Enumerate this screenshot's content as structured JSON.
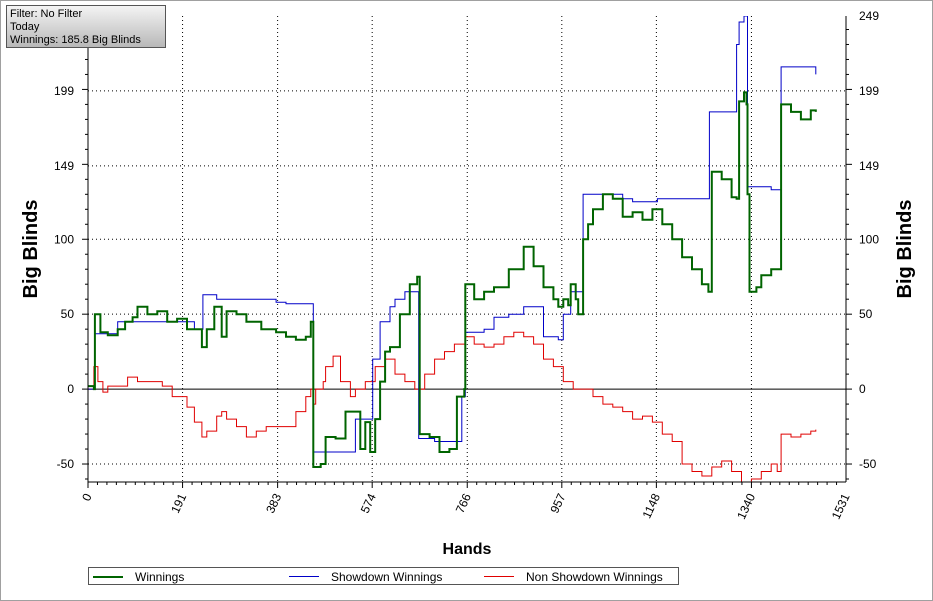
{
  "info_box": {
    "filter": "Filter: No Filter",
    "period": "Today",
    "winnings": "Winnings: 185.8 Big Blinds"
  },
  "chart_data": {
    "type": "line",
    "xlabel": "Hands",
    "ylabel": "Big Blinds",
    "xlim": [
      0,
      1531
    ],
    "ylim": [
      -62,
      249
    ],
    "x_ticks": [
      "0",
      "191",
      "383",
      "574",
      "766",
      "957",
      "1148",
      "1340",
      "1531"
    ],
    "y_ticks_left": [
      "199",
      "149",
      "100",
      "50",
      "0",
      "-50"
    ],
    "y_ticks_right": [
      "249",
      "199",
      "149",
      "100",
      "50",
      "0",
      "-50"
    ],
    "grid": true,
    "legend_position": "bottom",
    "series": [
      {
        "name": "Winnings",
        "color": "#006400",
        "points": [
          [
            0,
            2
          ],
          [
            12,
            0
          ],
          [
            14,
            50
          ],
          [
            25,
            38
          ],
          [
            40,
            36
          ],
          [
            60,
            40
          ],
          [
            75,
            45
          ],
          [
            90,
            48
          ],
          [
            100,
            55
          ],
          [
            120,
            50
          ],
          [
            140,
            52
          ],
          [
            160,
            45
          ],
          [
            180,
            47
          ],
          [
            200,
            40
          ],
          [
            230,
            28
          ],
          [
            240,
            40
          ],
          [
            255,
            55
          ],
          [
            270,
            35
          ],
          [
            280,
            52
          ],
          [
            300,
            50
          ],
          [
            320,
            45
          ],
          [
            350,
            40
          ],
          [
            380,
            38
          ],
          [
            400,
            35
          ],
          [
            420,
            33
          ],
          [
            440,
            35
          ],
          [
            450,
            45
          ],
          [
            455,
            -52
          ],
          [
            470,
            -50
          ],
          [
            480,
            -32
          ],
          [
            500,
            -33
          ],
          [
            520,
            -15
          ],
          [
            550,
            -40
          ],
          [
            560,
            -22
          ],
          [
            570,
            -42
          ],
          [
            580,
            -20
          ],
          [
            590,
            5
          ],
          [
            600,
            25
          ],
          [
            610,
            28
          ],
          [
            630,
            50
          ],
          [
            650,
            70
          ],
          [
            665,
            75
          ],
          [
            670,
            -30
          ],
          [
            690,
            -32
          ],
          [
            710,
            -42
          ],
          [
            730,
            -40
          ],
          [
            745,
            -5
          ],
          [
            760,
            0
          ],
          [
            762,
            70
          ],
          [
            780,
            60
          ],
          [
            800,
            65
          ],
          [
            820,
            68
          ],
          [
            850,
            80
          ],
          [
            880,
            95
          ],
          [
            900,
            82
          ],
          [
            920,
            68
          ],
          [
            940,
            60
          ],
          [
            950,
            55
          ],
          [
            960,
            60
          ],
          [
            970,
            56
          ],
          [
            975,
            70
          ],
          [
            985,
            60
          ],
          [
            990,
            50
          ],
          [
            1000,
            100
          ],
          [
            1010,
            110
          ],
          [
            1020,
            120
          ],
          [
            1040,
            130
          ],
          [
            1060,
            127
          ],
          [
            1080,
            115
          ],
          [
            1100,
            118
          ],
          [
            1120,
            113
          ],
          [
            1140,
            120
          ],
          [
            1160,
            110
          ],
          [
            1180,
            100
          ],
          [
            1200,
            88
          ],
          [
            1220,
            80
          ],
          [
            1240,
            70
          ],
          [
            1253,
            65
          ],
          [
            1260,
            145
          ],
          [
            1280,
            140
          ],
          [
            1300,
            128
          ],
          [
            1310,
            127
          ],
          [
            1315,
            192
          ],
          [
            1325,
            198
          ],
          [
            1330,
            190
          ],
          [
            1332,
            130
          ],
          [
            1336,
            65
          ],
          [
            1350,
            68
          ],
          [
            1360,
            76
          ],
          [
            1380,
            80
          ],
          [
            1392,
            80
          ],
          [
            1400,
            190
          ],
          [
            1420,
            185
          ],
          [
            1440,
            180
          ],
          [
            1460,
            186
          ],
          [
            1470,
            185
          ]
        ]
      },
      {
        "name": "Showdown Winnings",
        "color": "#0000c8",
        "points": [
          [
            0,
            0
          ],
          [
            12,
            0
          ],
          [
            14,
            37
          ],
          [
            40,
            37
          ],
          [
            60,
            45
          ],
          [
            100,
            45
          ],
          [
            180,
            45
          ],
          [
            215,
            40
          ],
          [
            232,
            63
          ],
          [
            250,
            63
          ],
          [
            260,
            60
          ],
          [
            300,
            60
          ],
          [
            380,
            58
          ],
          [
            400,
            57
          ],
          [
            452,
            57
          ],
          [
            455,
            -42
          ],
          [
            470,
            -42
          ],
          [
            500,
            -42
          ],
          [
            530,
            -42
          ],
          [
            540,
            -20
          ],
          [
            575,
            20
          ],
          [
            590,
            45
          ],
          [
            610,
            55
          ],
          [
            620,
            60
          ],
          [
            640,
            65
          ],
          [
            660,
            65
          ],
          [
            668,
            -33
          ],
          [
            700,
            -35
          ],
          [
            740,
            -35
          ],
          [
            755,
            -5
          ],
          [
            762,
            0
          ],
          [
            762,
            38
          ],
          [
            780,
            38
          ],
          [
            800,
            40
          ],
          [
            820,
            48
          ],
          [
            850,
            50
          ],
          [
            880,
            55
          ],
          [
            900,
            55
          ],
          [
            920,
            35
          ],
          [
            950,
            33
          ],
          [
            960,
            50
          ],
          [
            970,
            50
          ],
          [
            975,
            65
          ],
          [
            990,
            65
          ],
          [
            1000,
            130
          ],
          [
            1050,
            130
          ],
          [
            1080,
            127
          ],
          [
            1100,
            125
          ],
          [
            1150,
            127
          ],
          [
            1200,
            127
          ],
          [
            1253,
            127
          ],
          [
            1255,
            185
          ],
          [
            1290,
            185
          ],
          [
            1300,
            185
          ],
          [
            1310,
            230
          ],
          [
            1315,
            245
          ],
          [
            1325,
            249
          ],
          [
            1332,
            135
          ],
          [
            1370,
            135
          ],
          [
            1380,
            133
          ],
          [
            1392,
            133
          ],
          [
            1400,
            215
          ],
          [
            1430,
            215
          ],
          [
            1470,
            210
          ]
        ]
      },
      {
        "name": "Non Showdown Winnings",
        "color": "#e00000",
        "points": [
          [
            0,
            0
          ],
          [
            8,
            0
          ],
          [
            12,
            15
          ],
          [
            20,
            5
          ],
          [
            30,
            -2
          ],
          [
            40,
            2
          ],
          [
            60,
            2
          ],
          [
            80,
            8
          ],
          [
            100,
            5
          ],
          [
            120,
            5
          ],
          [
            150,
            2
          ],
          [
            170,
            -5
          ],
          [
            200,
            -12
          ],
          [
            215,
            -22
          ],
          [
            230,
            -32
          ],
          [
            240,
            -28
          ],
          [
            260,
            -18
          ],
          [
            270,
            -15
          ],
          [
            280,
            -20
          ],
          [
            300,
            -25
          ],
          [
            320,
            -32
          ],
          [
            340,
            -28
          ],
          [
            360,
            -25
          ],
          [
            380,
            -25
          ],
          [
            400,
            -25
          ],
          [
            420,
            -15
          ],
          [
            440,
            -5
          ],
          [
            450,
            0
          ],
          [
            455,
            -10
          ],
          [
            460,
            0
          ],
          [
            475,
            5
          ],
          [
            480,
            15
          ],
          [
            495,
            22
          ],
          [
            510,
            5
          ],
          [
            530,
            -5
          ],
          [
            540,
            0
          ],
          [
            560,
            5
          ],
          [
            580,
            15
          ],
          [
            600,
            20
          ],
          [
            620,
            10
          ],
          [
            640,
            5
          ],
          [
            660,
            0
          ],
          [
            680,
            10
          ],
          [
            700,
            20
          ],
          [
            720,
            25
          ],
          [
            740,
            30
          ],
          [
            762,
            35
          ],
          [
            780,
            30
          ],
          [
            800,
            28
          ],
          [
            820,
            30
          ],
          [
            840,
            35
          ],
          [
            860,
            38
          ],
          [
            880,
            35
          ],
          [
            900,
            30
          ],
          [
            920,
            20
          ],
          [
            940,
            15
          ],
          [
            960,
            5
          ],
          [
            980,
            0
          ],
          [
            1000,
            0
          ],
          [
            1020,
            -5
          ],
          [
            1040,
            -10
          ],
          [
            1060,
            -12
          ],
          [
            1080,
            -15
          ],
          [
            1100,
            -20
          ],
          [
            1120,
            -18
          ],
          [
            1140,
            -22
          ],
          [
            1160,
            -30
          ],
          [
            1180,
            -35
          ],
          [
            1200,
            -50
          ],
          [
            1220,
            -55
          ],
          [
            1240,
            -58
          ],
          [
            1260,
            -52
          ],
          [
            1280,
            -48
          ],
          [
            1300,
            -55
          ],
          [
            1320,
            -62
          ],
          [
            1340,
            -60
          ],
          [
            1360,
            -55
          ],
          [
            1380,
            -50
          ],
          [
            1392,
            -55
          ],
          [
            1400,
            -30
          ],
          [
            1420,
            -32
          ],
          [
            1440,
            -30
          ],
          [
            1460,
            -28
          ],
          [
            1470,
            -27
          ]
        ]
      }
    ]
  }
}
